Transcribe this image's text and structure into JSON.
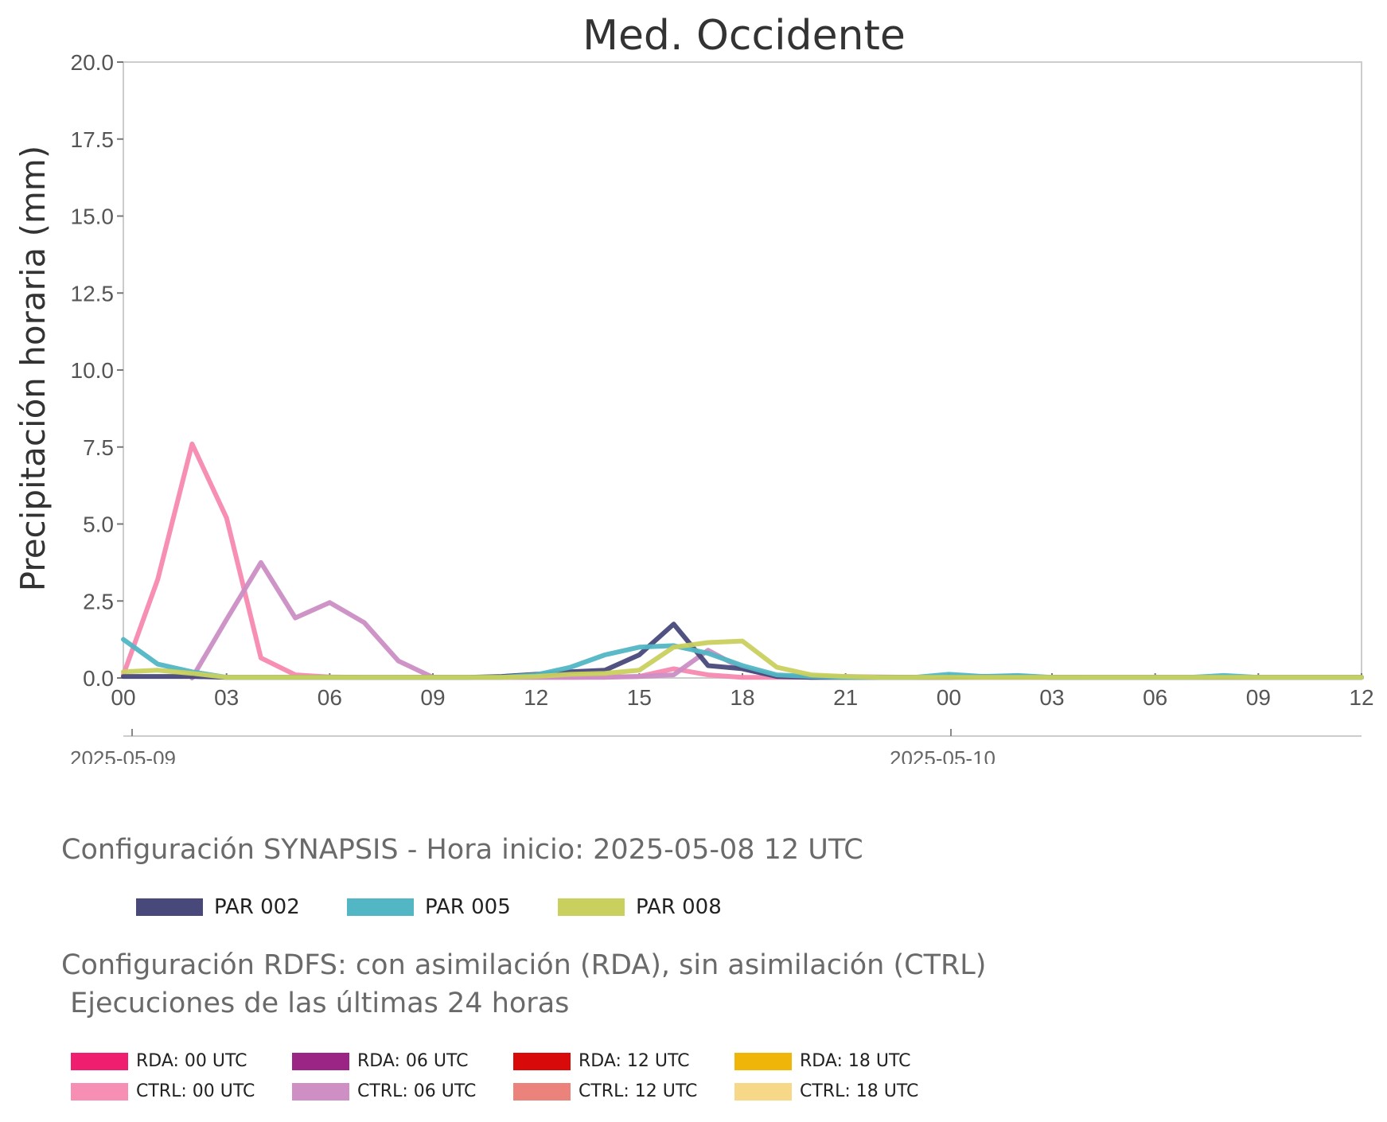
{
  "chart_data": {
    "type": "line",
    "title": "Med. Occidente",
    "ylabel": "Precipitación horaria (mm)",
    "xlabel": "",
    "ylim": [
      0,
      20
    ],
    "yticks": [
      "0.0",
      "2.5",
      "5.0",
      "7.5",
      "10.0",
      "12.5",
      "15.0",
      "17.5",
      "20.0"
    ],
    "xlim_hours": [
      0,
      36
    ],
    "xticks": [
      "00",
      "03",
      "06",
      "09",
      "12",
      "15",
      "18",
      "21",
      "00",
      "03",
      "06",
      "09",
      "12"
    ],
    "dates": [
      "2025-05-09",
      "2025-05-10"
    ],
    "grid": false,
    "series": [
      {
        "name": "CTRL: 00 UTC",
        "color": "#f788b0",
        "x": [
          0,
          1,
          2,
          3,
          4,
          5,
          6,
          7,
          8,
          9,
          10,
          11,
          12,
          13,
          14,
          15,
          16,
          17,
          18,
          19,
          20,
          21,
          22,
          23,
          24,
          25,
          26,
          27,
          28
        ],
        "values": [
          0.1,
          3.2,
          7.6,
          5.2,
          0.65,
          0.1,
          0.03,
          0.02,
          0.02,
          0.02,
          0.02,
          0.02,
          0.02,
          0.02,
          0.03,
          0.05,
          0.3,
          0.1,
          0.02,
          0.02,
          0.02,
          0.05,
          0.03,
          0.02,
          0.02,
          0.02,
          0.02,
          0.02,
          0.02
        ]
      },
      {
        "name": "CTRL: 06 UTC",
        "color": "#cc8ec4",
        "x": [
          2,
          3,
          4,
          5,
          6,
          7,
          8,
          9,
          10,
          11,
          12,
          13,
          14,
          15,
          16,
          17,
          18,
          19,
          20,
          21,
          22,
          23,
          24,
          25,
          26,
          27,
          28,
          29,
          30,
          31,
          32,
          33,
          34,
          35,
          36
        ],
        "values": [
          0.0,
          1.9,
          3.75,
          1.95,
          2.45,
          1.8,
          0.55,
          0.02,
          0.02,
          0.02,
          0.02,
          0.02,
          0.02,
          0.05,
          0.1,
          0.9,
          0.3,
          0.05,
          0.02,
          0.02,
          0.02,
          0.02,
          0.02,
          0.02,
          0.02,
          0.02,
          0.02,
          0.02,
          0.02,
          0.02,
          0.02,
          0.02,
          0.02,
          0.02,
          0.02
        ]
      },
      {
        "name": "PAR 002",
        "color": "#48497a",
        "x": [
          0,
          1,
          2,
          3,
          4,
          5,
          6,
          7,
          8,
          9,
          10,
          11,
          12,
          13,
          14,
          15,
          16,
          17,
          18,
          19,
          20,
          21,
          22,
          23,
          24,
          25,
          26,
          27,
          28,
          29,
          30,
          31,
          32,
          33,
          34,
          35,
          36
        ],
        "values": [
          0.05,
          0.05,
          0.05,
          0.02,
          0.02,
          0.02,
          0.02,
          0.02,
          0.02,
          0.02,
          0.02,
          0.05,
          0.12,
          0.2,
          0.25,
          0.75,
          1.75,
          0.4,
          0.3,
          0.05,
          0.02,
          0.02,
          0.02,
          0.02,
          0.02,
          0.05,
          0.05,
          0.02,
          0.02,
          0.02,
          0.02,
          0.02,
          0.02,
          0.02,
          0.02,
          0.02,
          0.02
        ]
      },
      {
        "name": "PAR 005",
        "color": "#52b6c4",
        "x": [
          0,
          1,
          2,
          3,
          4,
          5,
          6,
          7,
          8,
          9,
          10,
          11,
          12,
          13,
          14,
          15,
          16,
          17,
          18,
          19,
          20,
          21,
          22,
          23,
          24,
          25,
          26,
          27,
          28,
          29,
          30,
          31,
          32,
          33,
          34,
          35,
          36
        ],
        "values": [
          1.25,
          0.45,
          0.2,
          0.02,
          0.02,
          0.02,
          0.02,
          0.02,
          0.02,
          0.02,
          0.02,
          0.02,
          0.1,
          0.35,
          0.75,
          1.0,
          1.05,
          0.8,
          0.4,
          0.1,
          0.05,
          0.02,
          0.02,
          0.02,
          0.12,
          0.05,
          0.08,
          0.02,
          0.02,
          0.02,
          0.02,
          0.02,
          0.08,
          0.02,
          0.02,
          0.02,
          0.02
        ]
      },
      {
        "name": "PAR 008",
        "color": "#c9d05e",
        "x": [
          0,
          1,
          2,
          3,
          4,
          5,
          6,
          7,
          8,
          9,
          10,
          11,
          12,
          13,
          14,
          15,
          16,
          17,
          18,
          19,
          20,
          21,
          22,
          23,
          24,
          25,
          26,
          27,
          28,
          29,
          30,
          31,
          32,
          33,
          34,
          35,
          36
        ],
        "values": [
          0.2,
          0.25,
          0.15,
          0.02,
          0.02,
          0.02,
          0.02,
          0.02,
          0.02,
          0.02,
          0.02,
          0.02,
          0.05,
          0.12,
          0.15,
          0.25,
          1.0,
          1.15,
          1.2,
          0.35,
          0.1,
          0.05,
          0.02,
          0.02,
          0.02,
          0.02,
          0.02,
          0.02,
          0.02,
          0.02,
          0.02,
          0.02,
          0.02,
          0.02,
          0.02,
          0.02,
          0.02
        ]
      }
    ]
  },
  "legend_synapsis": {
    "title": "Configuración SYNAPSIS - Hora inicio: 2025-05-08 12 UTC",
    "items": [
      {
        "label": "PAR 002",
        "color": "#48497a"
      },
      {
        "label": "PAR 005",
        "color": "#52b6c4"
      },
      {
        "label": "PAR 008",
        "color": "#c9d05e"
      }
    ]
  },
  "legend_rdfs": {
    "title_line1": "Configuración RDFS: con asimilación (RDA), sin asimilación (CTRL)",
    "title_line2": " Ejecuciones de las últimas 24 horas",
    "row1": [
      {
        "label": "RDA: 00 UTC",
        "color": "#f01e6e"
      },
      {
        "label": "RDA: 06 UTC",
        "color": "#9b2585"
      },
      {
        "label": "RDA: 12 UTC",
        "color": "#d90a0a"
      },
      {
        "label": "RDA: 18 UTC",
        "color": "#efb508"
      }
    ],
    "row2": [
      {
        "label": "CTRL: 00 UTC",
        "color": "#f78fb4"
      },
      {
        "label": "CTRL: 06 UTC",
        "color": "#cd8fc4"
      },
      {
        "label": "CTRL: 12 UTC",
        "color": "#ec827c"
      },
      {
        "label": "CTRL: 18 UTC",
        "color": "#f7d788"
      }
    ]
  }
}
